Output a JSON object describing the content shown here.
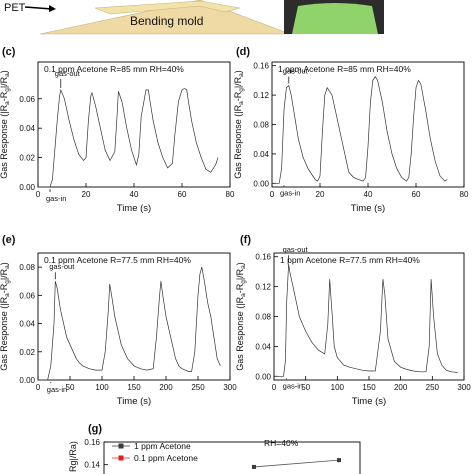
{
  "top_strip": {
    "pet_label": "PET",
    "mold_label": "Bending mold",
    "mold_color": "#efd9a4",
    "photo_color": "#8fd36a"
  },
  "chart_data": [
    {
      "type": "line",
      "panel": "(c)",
      "annotation": "0.1 ppm Acetone   R=85 mm      RH=40%",
      "xlabel": "Time (s)",
      "ylabel": "Gas Response (|Rg-Ra|/Ra)",
      "xlim": [
        0,
        80
      ],
      "ylim": [
        0,
        0.085
      ],
      "xticks": [
        "0",
        "20",
        "40",
        "60",
        "80"
      ],
      "yticks": [
        "0.00",
        "0.02",
        "0.04",
        "0.06"
      ],
      "gas_in_label": "gas-in",
      "gas_out_label": "gas-out",
      "x": [
        0,
        5,
        6,
        7,
        8,
        9,
        9.5,
        11,
        13,
        15,
        17,
        19,
        20,
        21,
        22,
        22.5,
        24,
        26,
        28,
        30,
        32,
        33,
        33.5,
        35,
        37,
        39,
        41,
        42,
        43,
        45,
        46,
        46.5,
        48,
        50,
        52,
        54,
        56,
        57,
        58.5,
        60,
        61,
        62,
        62.5,
        64,
        66,
        68,
        70,
        72,
        74,
        75
      ],
      "values": [
        0,
        0,
        0.005,
        0.025,
        0.045,
        0.062,
        0.066,
        0.06,
        0.045,
        0.032,
        0.022,
        0.018,
        0.02,
        0.045,
        0.062,
        0.064,
        0.055,
        0.04,
        0.025,
        0.018,
        0.024,
        0.05,
        0.065,
        0.058,
        0.04,
        0.025,
        0.015,
        0.022,
        0.048,
        0.066,
        0.066,
        0.06,
        0.045,
        0.03,
        0.02,
        0.013,
        0.016,
        0.035,
        0.058,
        0.066,
        0.067,
        0.066,
        0.06,
        0.045,
        0.03,
        0.02,
        0.012,
        0.01,
        0.015,
        0.02
      ]
    },
    {
      "type": "line",
      "panel": "(d)",
      "annotation": "1 ppm Acetone   R=85 mm      RH=40%",
      "xlabel": "Time (s)",
      "ylabel": "Gas Response (|Ra-Rg|/Ra)",
      "xlim": [
        0,
        80
      ],
      "ylim": [
        -0.005,
        0.165
      ],
      "xticks": [
        "0",
        "20",
        "40",
        "60",
        "80"
      ],
      "yticks": [
        "0.00",
        "0.04",
        "0.08",
        "0.12",
        "0.16"
      ],
      "gas_in_label": "gas-in",
      "gas_out_label": "gas-out",
      "x": [
        0,
        3,
        4,
        5,
        6,
        7,
        8,
        9,
        11,
        13,
        15,
        17,
        18,
        19,
        20,
        21,
        22,
        23,
        25,
        27,
        29,
        31,
        32,
        34,
        36,
        38,
        39,
        40,
        41,
        42,
        43,
        44,
        46,
        48,
        50,
        52,
        54,
        56,
        57,
        58,
        59,
        60,
        61,
        62,
        64,
        66,
        68,
        70,
        72,
        73
      ],
      "values": [
        0,
        0,
        0.02,
        0.1,
        0.13,
        0.133,
        0.12,
        0.1,
        0.06,
        0.035,
        0.02,
        0.01,
        0.005,
        0.003,
        0.01,
        0.07,
        0.12,
        0.13,
        0.12,
        0.09,
        0.06,
        0.03,
        0.015,
        0.008,
        0.005,
        0.003,
        0.008,
        0.05,
        0.11,
        0.14,
        0.145,
        0.14,
        0.11,
        0.07,
        0.04,
        0.02,
        0.008,
        0.003,
        0.008,
        0.04,
        0.09,
        0.13,
        0.14,
        0.135,
        0.1,
        0.06,
        0.03,
        0.01,
        0.003,
        0.005
      ]
    },
    {
      "type": "line",
      "panel": "(e)",
      "annotation": "0.1 ppm Acetone  R=77.5 mm     RH=40%",
      "xlabel": "Time (s)",
      "ylabel": "Gas Response (|Ra-Rg|/Ra)",
      "xlim": [
        0,
        300
      ],
      "ylim": [
        0,
        0.09
      ],
      "xticks": [
        "0",
        "50",
        "100",
        "150",
        "200",
        "250",
        "300"
      ],
      "yticks": [
        "0.00",
        "0.02",
        "0.04",
        "0.06",
        "0.08"
      ],
      "gas_in_label": "gas-in",
      "gas_out_label": "gas-out",
      "x": [
        0,
        15,
        20,
        25,
        27,
        30,
        35,
        40,
        45,
        50,
        55,
        60,
        65,
        70,
        80,
        90,
        100,
        105,
        110,
        112,
        115,
        120,
        125,
        130,
        135,
        140,
        150,
        160,
        170,
        180,
        185,
        190,
        192,
        195,
        200,
        210,
        215,
        220,
        225,
        230,
        235,
        240,
        245,
        250,
        253,
        256,
        260,
        265,
        270,
        275,
        280,
        285
      ],
      "values": [
        0,
        0,
        0.01,
        0.04,
        0.07,
        0.065,
        0.05,
        0.04,
        0.03,
        0.025,
        0.02,
        0.015,
        0.012,
        0.01,
        0.008,
        0.007,
        0.007,
        0.02,
        0.05,
        0.068,
        0.06,
        0.045,
        0.035,
        0.025,
        0.02,
        0.015,
        0.01,
        0.008,
        0.007,
        0.008,
        0.03,
        0.06,
        0.07,
        0.06,
        0.045,
        0.025,
        0.015,
        0.01,
        0.008,
        0.007,
        0.006,
        0.006,
        0.02,
        0.06,
        0.075,
        0.08,
        0.07,
        0.055,
        0.045,
        0.03,
        0.015,
        0.01
      ]
    },
    {
      "type": "line",
      "panel": "(f)",
      "annotation": "1 ppm Acetone  R=77.5 mm     RH=40%",
      "xlabel": "Time (s)",
      "ylabel": "Gas Response (|Ra-Rg|/Ra)",
      "xlim": [
        0,
        300
      ],
      "ylim": [
        -0.005,
        0.165
      ],
      "xticks": [
        "0",
        "50",
        "100",
        "150",
        "200",
        "250",
        "300"
      ],
      "yticks": [
        "0.00",
        "0.04",
        "0.08",
        "0.12",
        "0.16"
      ],
      "gas_in_label": "gas-in",
      "gas_out_label": "gas-out",
      "x": [
        0,
        15,
        18,
        20,
        23,
        25,
        30,
        35,
        40,
        50,
        60,
        70,
        80,
        85,
        88,
        92,
        95,
        100,
        110,
        120,
        130,
        140,
        150,
        160,
        168,
        172,
        175,
        180,
        190,
        200,
        210,
        220,
        230,
        240,
        245,
        248,
        252,
        258,
        265,
        272,
        280,
        290
      ],
      "values": [
        0,
        0,
        0.02,
        0.1,
        0.15,
        0.14,
        0.12,
        0.1,
        0.08,
        0.06,
        0.045,
        0.035,
        0.03,
        0.07,
        0.13,
        0.08,
        0.04,
        0.025,
        0.015,
        0.012,
        0.01,
        0.008,
        0.007,
        0.007,
        0.06,
        0.13,
        0.11,
        0.05,
        0.02,
        0.012,
        0.009,
        0.007,
        0.006,
        0.006,
        0.04,
        0.13,
        0.08,
        0.03,
        0.015,
        0.008,
        0.006,
        0.005
      ]
    },
    {
      "type": "line",
      "panel": "(g)",
      "annotation": "RH=40%",
      "ylabel": "Rg|/Ra)",
      "ylim": [
        0.13,
        0.16
      ],
      "yticks": [
        "0.16",
        "0.14"
      ],
      "legend_position": "top-left",
      "series": [
        {
          "name": "1 ppm Acetone",
          "color": "#3a3a3a",
          "values": [
            0.138,
            0.144
          ]
        },
        {
          "name": "0.1 ppm Acetone",
          "color": "#e02020",
          "values": []
        }
      ]
    }
  ]
}
